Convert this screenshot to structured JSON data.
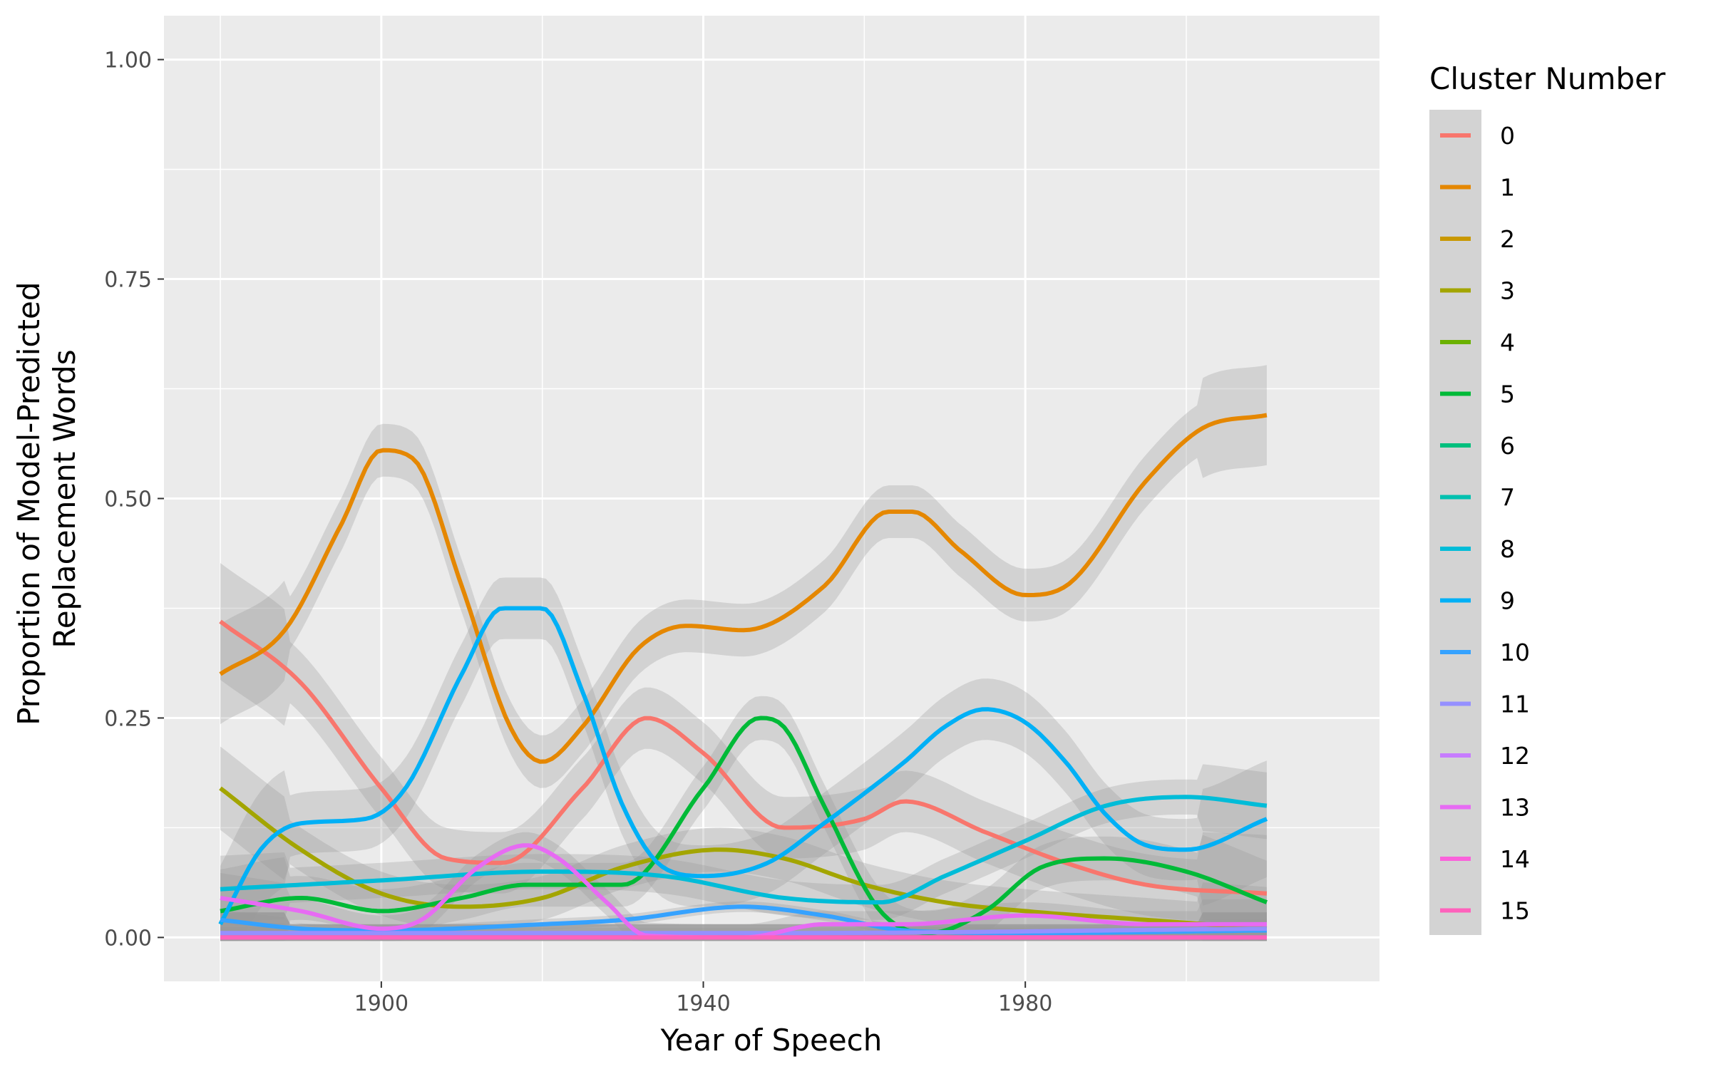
{
  "chart_data": {
    "type": "line",
    "xlabel": "Year of Speech",
    "ylabel_lines": [
      "Proportion of Model-Predicted",
      "Replacement Words"
    ],
    "xlim": [
      1873,
      2024
    ],
    "ylim": [
      -0.05,
      1.05
    ],
    "x_ticks": [
      {
        "v": 1900,
        "label": "1900"
      },
      {
        "v": 1940,
        "label": "1940"
      },
      {
        "v": 1980,
        "label": "1980"
      }
    ],
    "y_ticks": [
      {
        "v": 0,
        "label": "0.00"
      },
      {
        "v": 0.25,
        "label": "0.25"
      },
      {
        "v": 0.5,
        "label": "0.50"
      },
      {
        "v": 0.75,
        "label": "0.75"
      },
      {
        "v": 1.0,
        "label": "1.00"
      }
    ],
    "grid": true,
    "legend": {
      "title": "Cluster Number",
      "placement": "right"
    },
    "series": [
      {
        "name": "0",
        "color": "#F8766D",
        "se": 0.035,
        "points": [
          [
            1880,
            0.36
          ],
          [
            1890,
            0.29
          ],
          [
            1900,
            0.17
          ],
          [
            1908,
            0.09
          ],
          [
            1915,
            0.085
          ],
          [
            1925,
            0.17
          ],
          [
            1933,
            0.25
          ],
          [
            1940,
            0.21
          ],
          [
            1950,
            0.125
          ],
          [
            1960,
            0.135
          ],
          [
            1965,
            0.155
          ],
          [
            1975,
            0.12
          ],
          [
            1985,
            0.085
          ],
          [
            1995,
            0.06
          ],
          [
            2010,
            0.05
          ]
        ]
      },
      {
        "name": "1",
        "color": "#E58700",
        "se": 0.03,
        "points": [
          [
            1880,
            0.3
          ],
          [
            1888,
            0.35
          ],
          [
            1895,
            0.47
          ],
          [
            1900,
            0.555
          ],
          [
            1904,
            0.545
          ],
          [
            1910,
            0.4
          ],
          [
            1916,
            0.24
          ],
          [
            1920,
            0.2
          ],
          [
            1925,
            0.24
          ],
          [
            1932,
            0.33
          ],
          [
            1938,
            0.355
          ],
          [
            1945,
            0.35
          ],
          [
            1955,
            0.4
          ],
          [
            1963,
            0.485
          ],
          [
            1966,
            0.485
          ],
          [
            1972,
            0.44
          ],
          [
            1980,
            0.39
          ],
          [
            1985,
            0.4
          ],
          [
            1995,
            0.52
          ],
          [
            2002,
            0.58
          ],
          [
            2010,
            0.595
          ]
        ]
      },
      {
        "name": "2",
        "color": "#C99800",
        "se": 0.015,
        "points": [
          [
            1880,
            0.0
          ],
          [
            1950,
            0.0
          ],
          [
            2010,
            0.0
          ]
        ]
      },
      {
        "name": "3",
        "color": "#A3A500",
        "se": 0.025,
        "points": [
          [
            1880,
            0.17
          ],
          [
            1890,
            0.1
          ],
          [
            1900,
            0.05
          ],
          [
            1910,
            0.035
          ],
          [
            1920,
            0.045
          ],
          [
            1930,
            0.08
          ],
          [
            1942,
            0.1
          ],
          [
            1950,
            0.09
          ],
          [
            1960,
            0.06
          ],
          [
            1970,
            0.04
          ],
          [
            1980,
            0.03
          ],
          [
            1995,
            0.02
          ],
          [
            2010,
            0.01
          ]
        ]
      },
      {
        "name": "4",
        "color": "#6BB100",
        "se": 0.015,
        "points": [
          [
            1880,
            0.0
          ],
          [
            1950,
            0.0
          ],
          [
            2010,
            0.0
          ]
        ]
      },
      {
        "name": "5",
        "color": "#00BA38",
        "se": 0.025,
        "points": [
          [
            1880,
            0.03
          ],
          [
            1890,
            0.045
          ],
          [
            1900,
            0.03
          ],
          [
            1910,
            0.045
          ],
          [
            1918,
            0.06
          ],
          [
            1930,
            0.06
          ],
          [
            1940,
            0.17
          ],
          [
            1947,
            0.25
          ],
          [
            1950,
            0.24
          ],
          [
            1955,
            0.15
          ],
          [
            1962,
            0.03
          ],
          [
            1968,
            0.005
          ],
          [
            1975,
            0.03
          ],
          [
            1982,
            0.08
          ],
          [
            1990,
            0.09
          ],
          [
            2000,
            0.075
          ],
          [
            2010,
            0.04
          ]
        ]
      },
      {
        "name": "6",
        "color": "#00BF7D",
        "se": 0.015,
        "points": [
          [
            1880,
            0.0
          ],
          [
            1950,
            0.0
          ],
          [
            2010,
            0.0
          ]
        ]
      },
      {
        "name": "7",
        "color": "#00C0AF",
        "se": 0.015,
        "points": [
          [
            1880,
            0.0
          ],
          [
            1950,
            0.0
          ],
          [
            2010,
            0.0
          ]
        ]
      },
      {
        "name": "8",
        "color": "#00BCD8",
        "se": 0.02,
        "points": [
          [
            1880,
            0.055
          ],
          [
            1900,
            0.065
          ],
          [
            1920,
            0.075
          ],
          [
            1935,
            0.07
          ],
          [
            1950,
            0.045
          ],
          [
            1962,
            0.04
          ],
          [
            1970,
            0.07
          ],
          [
            1980,
            0.11
          ],
          [
            1990,
            0.15
          ],
          [
            2000,
            0.16
          ],
          [
            2010,
            0.15
          ]
        ]
      },
      {
        "name": "9",
        "color": "#00B0F6",
        "se": 0.035,
        "points": [
          [
            1880,
            0.015
          ],
          [
            1885,
            0.1
          ],
          [
            1890,
            0.13
          ],
          [
            1898,
            0.135
          ],
          [
            1903,
            0.17
          ],
          [
            1910,
            0.3
          ],
          [
            1915,
            0.375
          ],
          [
            1920,
            0.375
          ],
          [
            1925,
            0.28
          ],
          [
            1930,
            0.15
          ],
          [
            1935,
            0.08
          ],
          [
            1940,
            0.07
          ],
          [
            1948,
            0.085
          ],
          [
            1955,
            0.13
          ],
          [
            1965,
            0.2
          ],
          [
            1970,
            0.24
          ],
          [
            1975,
            0.26
          ],
          [
            1980,
            0.245
          ],
          [
            1985,
            0.2
          ],
          [
            1990,
            0.14
          ],
          [
            1995,
            0.105
          ],
          [
            2000,
            0.1
          ],
          [
            2010,
            0.135
          ]
        ]
      },
      {
        "name": "10",
        "color": "#35A2FF",
        "se": 0.006,
        "points": [
          [
            1880,
            0.02
          ],
          [
            1890,
            0.01
          ],
          [
            1900,
            0.008
          ],
          [
            1920,
            0.015
          ],
          [
            1930,
            0.02
          ],
          [
            1945,
            0.035
          ],
          [
            1955,
            0.025
          ],
          [
            1965,
            0.008
          ],
          [
            1980,
            0.005
          ],
          [
            2010,
            0.008
          ]
        ]
      },
      {
        "name": "11",
        "color": "#9590FF",
        "se": 0.006,
        "points": [
          [
            1880,
            0.005
          ],
          [
            1950,
            0.005
          ],
          [
            2010,
            0.01
          ]
        ]
      },
      {
        "name": "12",
        "color": "#C77CFF",
        "se": 0.006,
        "points": [
          [
            1880,
            0.0
          ],
          [
            1950,
            0.0
          ],
          [
            2010,
            0.0
          ]
        ]
      },
      {
        "name": "13",
        "color": "#E76BF3",
        "se": 0.015,
        "points": [
          [
            1880,
            0.045
          ],
          [
            1890,
            0.03
          ],
          [
            1900,
            0.01
          ],
          [
            1905,
            0.02
          ],
          [
            1912,
            0.08
          ],
          [
            1918,
            0.105
          ],
          [
            1922,
            0.09
          ],
          [
            1928,
            0.04
          ],
          [
            1933,
            0.002
          ],
          [
            1945,
            0.0
          ],
          [
            1955,
            0.015
          ],
          [
            1965,
            0.015
          ],
          [
            1980,
            0.025
          ],
          [
            1995,
            0.015
          ],
          [
            2010,
            0.015
          ]
        ]
      },
      {
        "name": "14",
        "color": "#FA62DB",
        "se": 0.006,
        "points": [
          [
            1880,
            0.0
          ],
          [
            1950,
            0.0
          ],
          [
            2010,
            0.0
          ]
        ]
      },
      {
        "name": "15",
        "color": "#FF62BC",
        "se": 0.004,
        "points": [
          [
            1880,
            0.0
          ],
          [
            1950,
            0.0
          ],
          [
            2010,
            0.0
          ]
        ]
      }
    ]
  }
}
